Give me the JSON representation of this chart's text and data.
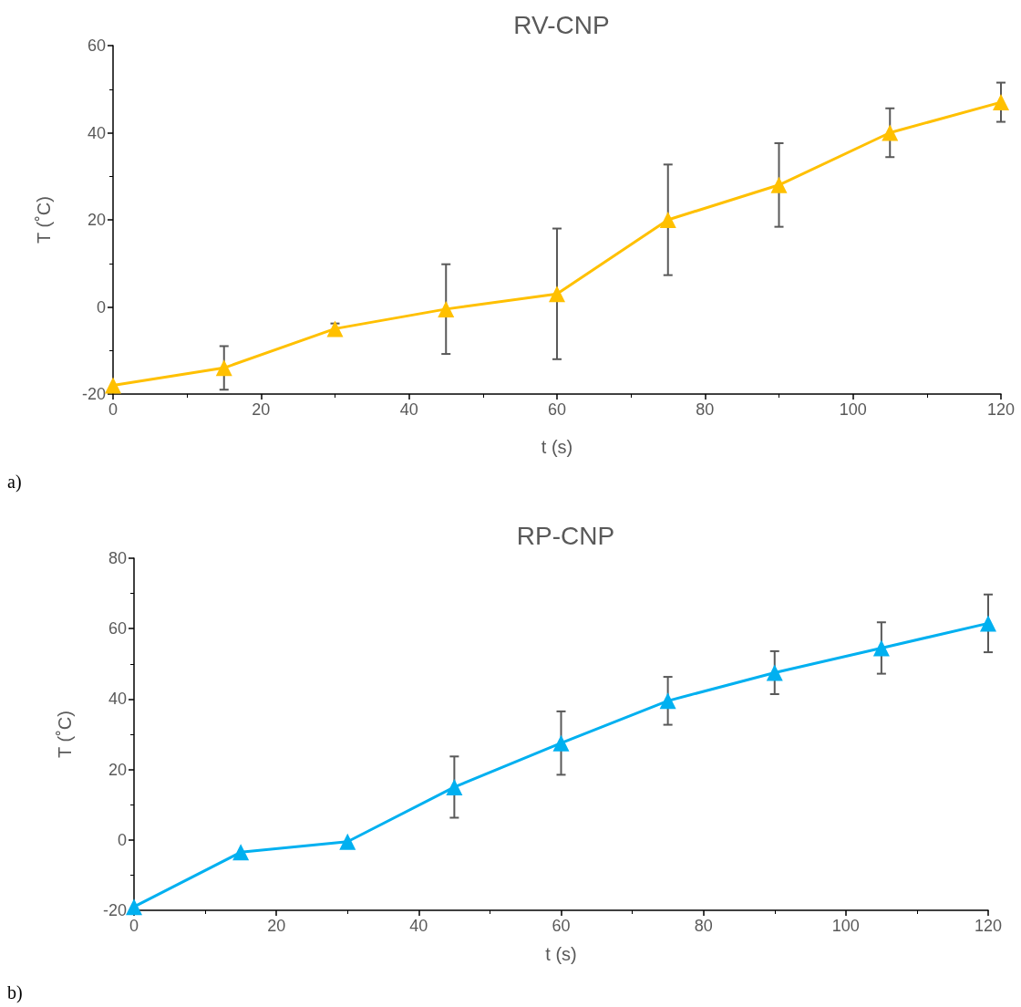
{
  "chart_data": [
    {
      "type": "line",
      "title": "RV-CNP",
      "xlabel": "t (s)",
      "ylabel": "T (˚C)",
      "x": [
        0,
        15,
        30,
        45,
        60,
        75,
        90,
        105,
        120
      ],
      "series": [
        {
          "color": "#ffc000",
          "values": [
            -18,
            -14,
            -5,
            -0.5,
            3,
            20,
            28,
            40,
            47
          ],
          "errors": [
            null,
            5,
            1.2,
            10.3,
            15,
            12.7,
            9.6,
            5.6,
            4.5
          ]
        }
      ],
      "xlim": [
        0,
        120
      ],
      "xticks": [
        0,
        20,
        40,
        60,
        80,
        100,
        120
      ],
      "ylim": [
        -20,
        60
      ],
      "yticks": [
        -20,
        0,
        20,
        40,
        60
      ],
      "marker": "triangle",
      "annotations": [
        "a)"
      ]
    },
    {
      "type": "line",
      "title": "RP-CNP",
      "xlabel": "t (s)",
      "ylabel": "T (˚C)",
      "x": [
        0,
        15,
        30,
        45,
        60,
        75,
        90,
        105,
        120
      ],
      "series": [
        {
          "color": "#00b0f0",
          "values": [
            -19,
            -3.5,
            -0.5,
            15,
            27.5,
            39.5,
            47.5,
            54.5,
            61.5
          ],
          "errors": [
            null,
            null,
            null,
            8.7,
            9,
            6.8,
            6.1,
            7.3,
            8.2
          ]
        }
      ],
      "xlim": [
        0,
        120
      ],
      "xticks": [
        0,
        20,
        40,
        60,
        80,
        100,
        120
      ],
      "ylim": [
        -20,
        80
      ],
      "yticks": [
        -20,
        0,
        20,
        40,
        60,
        80
      ],
      "marker": "triangle",
      "annotations": [
        "b)"
      ]
    }
  ]
}
